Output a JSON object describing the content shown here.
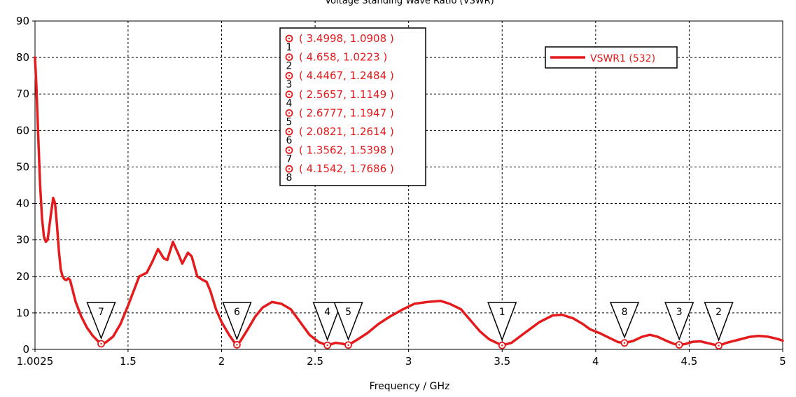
{
  "chart_data": {
    "type": "line",
    "title": "Voltage Standing Wave Ratio (VSWR)",
    "xlabel": "Frequency / GHz",
    "ylabel": "",
    "xlim": [
      1.0025,
      5
    ],
    "ylim": [
      0,
      90
    ],
    "grid": true,
    "x_ticks": [
      1.0025,
      1.5,
      2,
      2.5,
      3,
      3.5,
      4,
      4.5,
      5
    ],
    "x_tick_labels": [
      "1.0025",
      "1.5",
      "2",
      "2.5",
      "3",
      "3.5",
      "4",
      "4.5",
      "5"
    ],
    "y_ticks": [
      0,
      10,
      20,
      30,
      40,
      50,
      60,
      70,
      80,
      90
    ],
    "y_tick_labels": [
      "0",
      "10",
      "20",
      "30",
      "40",
      "50",
      "60",
      "70",
      "80",
      "90"
    ],
    "legend": {
      "placement": "top-right",
      "entries": [
        "VSWR1 (532)"
      ]
    },
    "series": [
      {
        "name": "VSWR1 (532)",
        "color": "#e41a1c",
        "points": [
          [
            1.0025,
            80
          ],
          [
            1.01,
            72
          ],
          [
            1.02,
            58
          ],
          [
            1.03,
            45
          ],
          [
            1.04,
            36
          ],
          [
            1.05,
            31
          ],
          [
            1.06,
            29.5
          ],
          [
            1.07,
            30
          ],
          [
            1.08,
            34
          ],
          [
            1.09,
            38
          ],
          [
            1.1,
            41.5
          ],
          [
            1.11,
            40
          ],
          [
            1.12,
            34
          ],
          [
            1.13,
            27
          ],
          [
            1.14,
            22
          ],
          [
            1.15,
            20
          ],
          [
            1.16,
            19.2
          ],
          [
            1.17,
            19
          ],
          [
            1.18,
            19.5
          ],
          [
            1.19,
            19
          ],
          [
            1.2,
            17
          ],
          [
            1.22,
            13
          ],
          [
            1.25,
            9
          ],
          [
            1.28,
            6
          ],
          [
            1.31,
            3.8
          ],
          [
            1.34,
            2.2
          ],
          [
            1.3562,
            1.54
          ],
          [
            1.38,
            1.9
          ],
          [
            1.42,
            3.5
          ],
          [
            1.46,
            7
          ],
          [
            1.5,
            12
          ],
          [
            1.53,
            16
          ],
          [
            1.56,
            20
          ],
          [
            1.6,
            21
          ],
          [
            1.63,
            24
          ],
          [
            1.66,
            27.5
          ],
          [
            1.69,
            25
          ],
          [
            1.71,
            24.5
          ],
          [
            1.74,
            29.5
          ],
          [
            1.77,
            26
          ],
          [
            1.79,
            23.5
          ],
          [
            1.82,
            26.5
          ],
          [
            1.84,
            25.5
          ],
          [
            1.87,
            20
          ],
          [
            1.9,
            19
          ],
          [
            1.92,
            18.5
          ],
          [
            1.94,
            16
          ],
          [
            1.97,
            11
          ],
          [
            2.0,
            7.5
          ],
          [
            2.04,
            4
          ],
          [
            2.07,
            1.8
          ],
          [
            2.0821,
            1.26
          ],
          [
            2.1,
            2.2
          ],
          [
            2.14,
            5.5
          ],
          [
            2.18,
            9
          ],
          [
            2.22,
            11.5
          ],
          [
            2.27,
            13
          ],
          [
            2.32,
            12.5
          ],
          [
            2.37,
            11
          ],
          [
            2.42,
            7.5
          ],
          [
            2.47,
            4
          ],
          [
            2.52,
            2
          ],
          [
            2.5657,
            1.11
          ],
          [
            2.61,
            1.8
          ],
          [
            2.64,
            1.6
          ],
          [
            2.6777,
            1.19
          ],
          [
            2.72,
            2.5
          ],
          [
            2.78,
            4.5
          ],
          [
            2.84,
            7
          ],
          [
            2.9,
            9
          ],
          [
            2.97,
            11
          ],
          [
            3.03,
            12.5
          ],
          [
            3.1,
            13
          ],
          [
            3.17,
            13.3
          ],
          [
            3.22,
            12.5
          ],
          [
            3.28,
            11
          ],
          [
            3.33,
            8
          ],
          [
            3.38,
            5
          ],
          [
            3.43,
            2.8
          ],
          [
            3.4998,
            1.09
          ],
          [
            3.55,
            1.8
          ],
          [
            3.62,
            4.5
          ],
          [
            3.7,
            7.5
          ],
          [
            3.77,
            9.3
          ],
          [
            3.82,
            9.5
          ],
          [
            3.88,
            8.5
          ],
          [
            3.93,
            7
          ],
          [
            3.97,
            5.5
          ],
          [
            4.02,
            4.5
          ],
          [
            4.08,
            3
          ],
          [
            4.12,
            2
          ],
          [
            4.1542,
            1.77
          ],
          [
            4.2,
            2.3
          ],
          [
            4.25,
            3.5
          ],
          [
            4.29,
            4
          ],
          [
            4.33,
            3.5
          ],
          [
            4.38,
            2.3
          ],
          [
            4.42,
            1.5
          ],
          [
            4.4467,
            1.25
          ],
          [
            4.48,
            1.5
          ],
          [
            4.52,
            2.1
          ],
          [
            4.56,
            2.2
          ],
          [
            4.6,
            1.7
          ],
          [
            4.658,
            1.02
          ],
          [
            4.7,
            1.8
          ],
          [
            4.76,
            2.6
          ],
          [
            4.82,
            3.4
          ],
          [
            4.87,
            3.7
          ],
          [
            4.92,
            3.5
          ],
          [
            4.97,
            2.9
          ],
          [
            5.0,
            2.4
          ]
        ]
      }
    ],
    "markers": [
      {
        "id": "1",
        "x": 3.4998,
        "y": 1.0908,
        "label": "( 3.4998, 1.0908 )"
      },
      {
        "id": "2",
        "x": 4.658,
        "y": 1.0223,
        "label": "( 4.658, 1.0223 )"
      },
      {
        "id": "3",
        "x": 4.4467,
        "y": 1.2484,
        "label": "( 4.4467, 1.2484 )"
      },
      {
        "id": "4",
        "x": 2.5657,
        "y": 1.1149,
        "label": "( 2.5657, 1.1149 )"
      },
      {
        "id": "5",
        "x": 2.6777,
        "y": 1.1947,
        "label": "( 2.6777, 1.1947 )"
      },
      {
        "id": "6",
        "x": 2.0821,
        "y": 1.2614,
        "label": "( 2.0821, 1.2614 )"
      },
      {
        "id": "7",
        "x": 1.3562,
        "y": 1.5398,
        "label": "( 1.3562, 1.5398 )"
      },
      {
        "id": "8",
        "x": 4.1542,
        "y": 1.7686,
        "label": "( 4.1542, 1.7686 )"
      }
    ]
  }
}
